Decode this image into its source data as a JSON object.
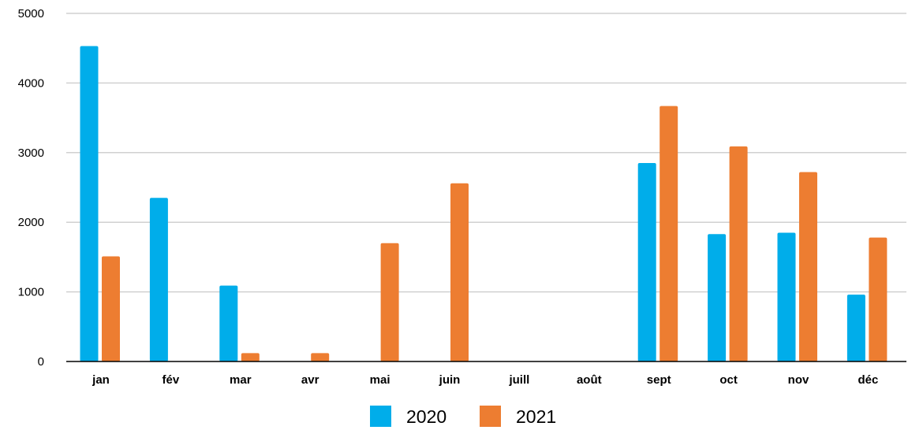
{
  "chart_data": {
    "type": "bar",
    "categories": [
      "jan",
      "fév",
      "mar",
      "avr",
      "mai",
      "juin",
      "juill",
      "août",
      "sept",
      "oct",
      "nov",
      "déc"
    ],
    "series": [
      {
        "name": "2020",
        "color": "#00adea",
        "values": [
          4530,
          2350,
          1090,
          0,
          0,
          0,
          0,
          0,
          2850,
          1830,
          1850,
          960
        ]
      },
      {
        "name": "2021",
        "color": "#ed7d31",
        "values": [
          1510,
          0,
          120,
          120,
          1700,
          2560,
          0,
          0,
          3670,
          3090,
          2720,
          1780
        ]
      }
    ],
    "yticks": [
      "0",
      "1000",
      "2000",
      "3000",
      "4000",
      "5000"
    ],
    "ylim": [
      0,
      5000
    ],
    "grid": true,
    "legend_position": "bottom-center"
  }
}
